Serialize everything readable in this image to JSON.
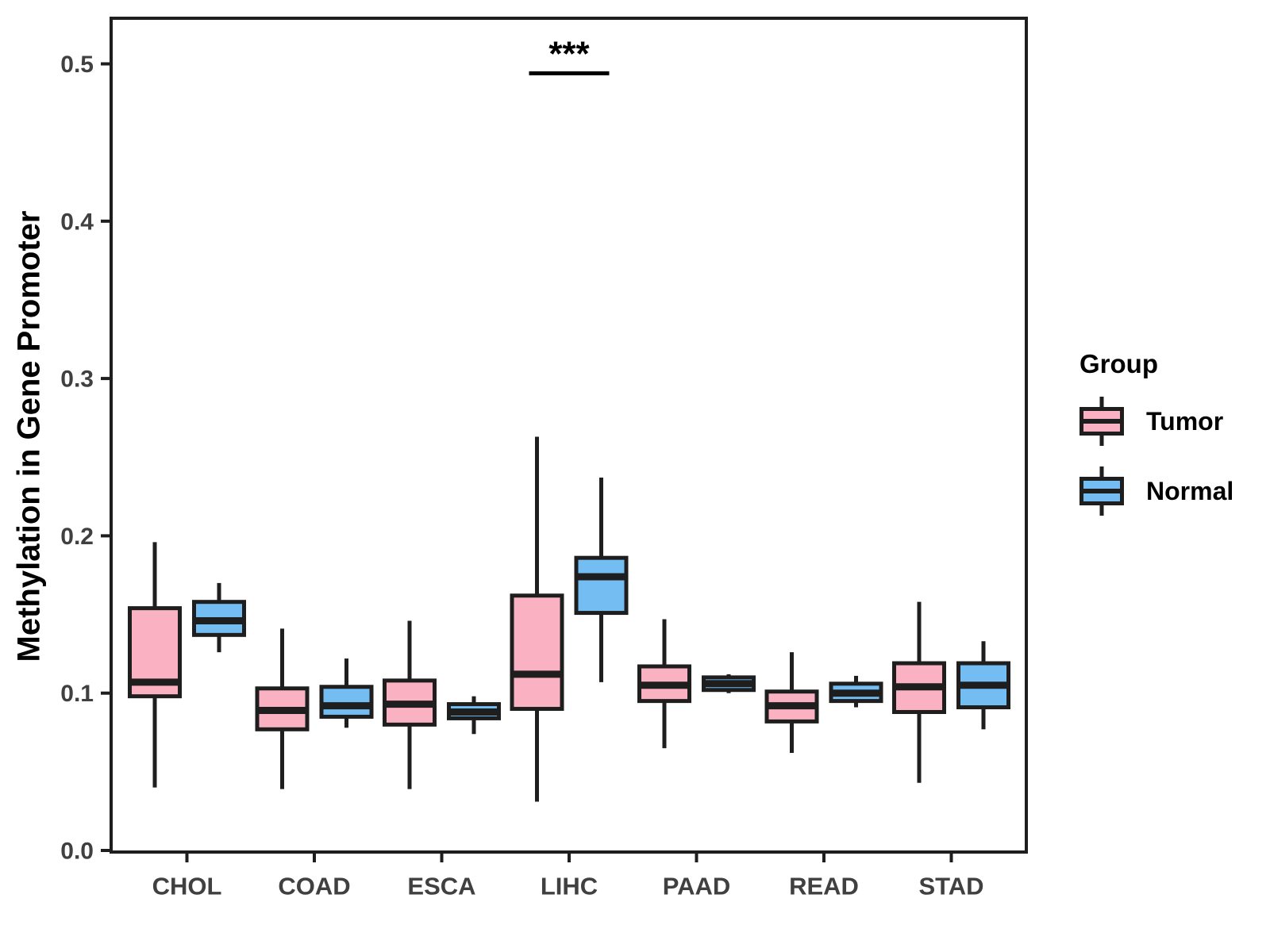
{
  "chart_data": {
    "type": "boxplot",
    "title": "",
    "xlabel": "",
    "ylabel": "Methylation in Gene Promoter",
    "ylim": [
      0,
      0.53
    ],
    "grid": "off",
    "panel_border": "on",
    "ytick_values": [
      0.0,
      0.1,
      0.2,
      0.3,
      0.4,
      0.5
    ],
    "ytick_labels": [
      "0.0",
      "0.1",
      "0.2",
      "0.3",
      "0.4",
      "0.5"
    ],
    "categories": [
      "CHOL",
      "COAD",
      "ESCA",
      "LIHC",
      "PAAD",
      "READ",
      "STAD"
    ],
    "series": [
      {
        "name": "Tumor",
        "color": "#FAB1C2",
        "boxes": [
          {
            "whisker_low": 0.04,
            "q1": 0.098,
            "median": 0.107,
            "q3": 0.154,
            "whisker_high": 0.196
          },
          {
            "whisker_low": 0.039,
            "q1": 0.077,
            "median": 0.089,
            "q3": 0.103,
            "whisker_high": 0.141
          },
          {
            "whisker_low": 0.039,
            "q1": 0.08,
            "median": 0.093,
            "q3": 0.108,
            "whisker_high": 0.146
          },
          {
            "whisker_low": 0.031,
            "q1": 0.09,
            "median": 0.112,
            "q3": 0.162,
            "whisker_high": 0.263
          },
          {
            "whisker_low": 0.065,
            "q1": 0.095,
            "median": 0.105,
            "q3": 0.117,
            "whisker_high": 0.147
          },
          {
            "whisker_low": 0.062,
            "q1": 0.082,
            "median": 0.092,
            "q3": 0.101,
            "whisker_high": 0.126
          },
          {
            "whisker_low": 0.043,
            "q1": 0.088,
            "median": 0.104,
            "q3": 0.119,
            "whisker_high": 0.158
          }
        ]
      },
      {
        "name": "Normal",
        "color": "#74BDF2",
        "boxes": [
          {
            "whisker_low": 0.126,
            "q1": 0.137,
            "median": 0.146,
            "q3": 0.158,
            "whisker_high": 0.17
          },
          {
            "whisker_low": 0.078,
            "q1": 0.085,
            "median": 0.092,
            "q3": 0.104,
            "whisker_high": 0.122
          },
          {
            "whisker_low": 0.074,
            "q1": 0.084,
            "median": 0.088,
            "q3": 0.093,
            "whisker_high": 0.098
          },
          {
            "whisker_low": 0.107,
            "q1": 0.151,
            "median": 0.174,
            "q3": 0.186,
            "whisker_high": 0.237
          },
          {
            "whisker_low": 0.1,
            "q1": 0.102,
            "median": 0.106,
            "q3": 0.11,
            "whisker_high": 0.112
          },
          {
            "whisker_low": 0.091,
            "q1": 0.095,
            "median": 0.1,
            "q3": 0.106,
            "whisker_high": 0.111
          },
          {
            "whisker_low": 0.077,
            "q1": 0.091,
            "median": 0.105,
            "q3": 0.119,
            "whisker_high": 0.133
          }
        ]
      }
    ],
    "annotation": {
      "label": "***",
      "category": "LIHC",
      "spans": [
        "Tumor",
        "Normal"
      ],
      "y_value": 0.494
    },
    "legend": {
      "title": "Group",
      "entries": [
        "Tumor",
        "Normal"
      ]
    },
    "colors": {
      "stroke": "#1E1E1E",
      "axis_text": "#404040",
      "tumor_fill": "#FAB1C2",
      "normal_fill": "#74BDF2"
    }
  }
}
